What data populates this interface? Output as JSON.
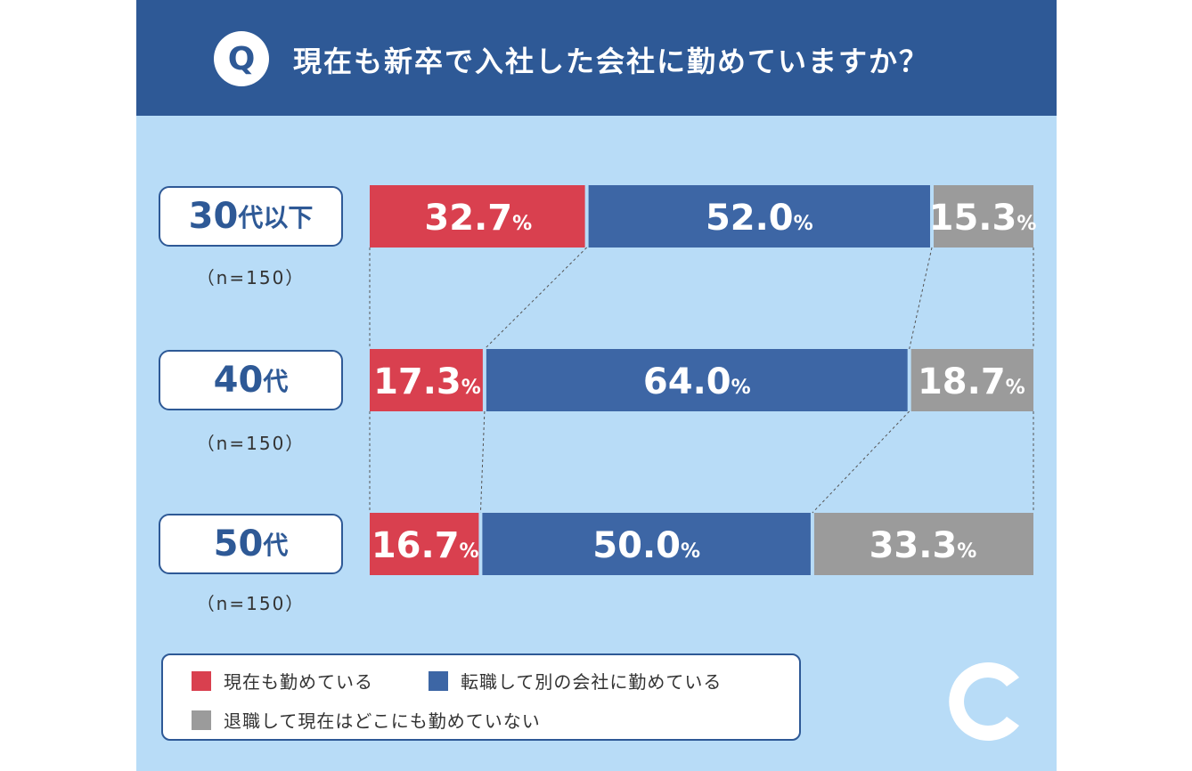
{
  "header": {
    "badge": "Q",
    "question": "現在も新卒で入社した会社に勤めていますか？"
  },
  "groups": [
    {
      "num": "30",
      "suffix": "代以下",
      "n": "（n=150）"
    },
    {
      "num": "40",
      "suffix": "代",
      "n": "（n=150）"
    },
    {
      "num": "50",
      "suffix": "代",
      "n": "（n=150）"
    }
  ],
  "legend": {
    "items": [
      {
        "label": "現在も勤めている",
        "color": "#d9404f"
      },
      {
        "label": "転職して別の会社に勤めている",
        "color": "#3d66a5"
      },
      {
        "label": "退職して現在はどこにも勤めていない",
        "color": "#9b9b9b"
      }
    ]
  },
  "colors": {
    "header": "#2e5996",
    "background": "#b8dcf7",
    "red": "#d9404f",
    "blue": "#3d66a5",
    "gray": "#9b9b9b"
  },
  "logo_icon": "c-logo-icon",
  "chart_data": {
    "type": "bar",
    "stacked": true,
    "orientation": "horizontal",
    "title": "現在も新卒で入社した会社に勤めていますか？",
    "categories": [
      "30代以下",
      "40代",
      "50代"
    ],
    "series": [
      {
        "name": "現在も勤めている",
        "values": [
          32.7,
          17.3,
          16.7
        ]
      },
      {
        "name": "転職して別の会社に勤めている",
        "values": [
          52.0,
          64.0,
          50.0
        ]
      },
      {
        "name": "退職して現在はどこにも勤めていない",
        "values": [
          15.3,
          18.7,
          33.3
        ]
      }
    ],
    "unit": "%",
    "xlim": [
      0,
      100
    ],
    "legend_position": "bottom-left"
  }
}
